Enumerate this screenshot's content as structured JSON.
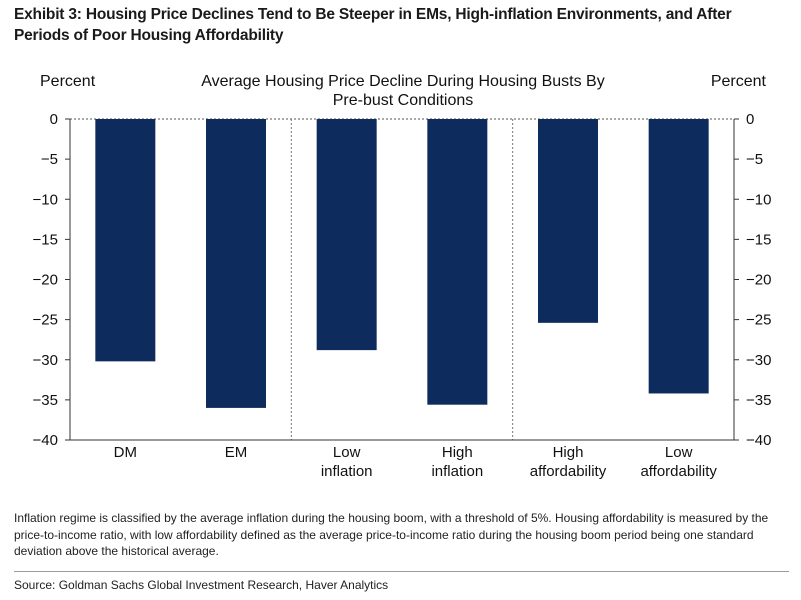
{
  "exhibit": {
    "title": "Exhibit 3: Housing Price Declines Tend to Be Steeper in EMs, High-inflation Environments, and After Periods of Poor Housing Affordability"
  },
  "chart_data": {
    "type": "bar",
    "title_lines": [
      "Average Housing Price Decline During Housing Busts By",
      "Pre-bust Conditions"
    ],
    "ylabel_left": "Percent",
    "ylabel_right": "Percent",
    "categories": [
      [
        "DM"
      ],
      [
        "EM"
      ],
      [
        "Low",
        "inflation"
      ],
      [
        "High",
        "inflation"
      ],
      [
        "High",
        "affordability"
      ],
      [
        "Low",
        "affordability"
      ]
    ],
    "values": [
      -30.2,
      -36.0,
      -28.8,
      -35.6,
      -25.4,
      -34.2
    ],
    "ylim": [
      -40,
      0
    ],
    "yticks": [
      0,
      -5,
      -10,
      -15,
      -20,
      -25,
      -30,
      -35,
      -40
    ],
    "ytick_labels": [
      "0",
      "−5",
      "−10",
      "−15",
      "−20",
      "−25",
      "−30",
      "−35",
      "−40"
    ],
    "group_separators_after": [
      2,
      4
    ],
    "bar_color": "#0d2b5c"
  },
  "footnote": "Inflation regime is classified by the average inflation during the housing boom, with a threshold of 5%. Housing affordability is measured by the price-to-income ratio, with low affordability defined as the average price-to-income ratio during the housing boom period being one standard deviation above the historical average.",
  "source": "Source: Goldman Sachs Global Investment Research, Haver Analytics"
}
